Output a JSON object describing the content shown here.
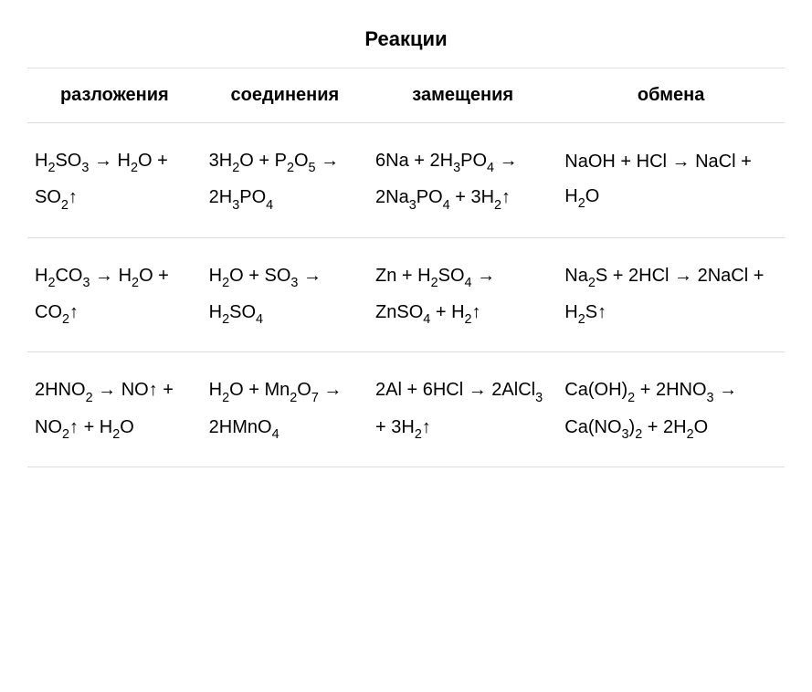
{
  "title": "Реакции",
  "columns": [
    "разложения",
    "соединения",
    "замещения",
    "обмена"
  ],
  "rows": [
    [
      "H{2}SO{3} → H{2}O + SO{2}↑",
      "3H{2}O + P{2}O{5} → 2H{3}PO{4}",
      "6Na + 2H{3}PO{4} → 2Na{3}PO{4} + 3H{2}↑",
      "NaOH + HCl → NaCl + H{2}O"
    ],
    [
      "H{2}CO{3} → H{2}O + CO{2}↑",
      "H{2}O + SO{3} → H{2}SO{4}",
      "Zn + H{2}SO{4} → ZnSO{4} + H{2}↑",
      "Na{2}S + 2HCl → 2NaCl + H{2}S↑"
    ],
    [
      "2HNO{2} → NO↑ + NO{2}↑ + H{2}O",
      "H{2}O + Mn{2}O{7} → 2HMnO{4}",
      "2Al + 6HCl → 2AlCl{3} + 3H{2}↑",
      "Ca(OH){2} + 2HNO{3} → Ca(NO{3}){2} + 2H{2}O"
    ]
  ],
  "style": {
    "background_color": "#ffffff",
    "text_color": "#000000",
    "border_color": "#dddddd",
    "title_fontsize": 22,
    "header_fontsize": 20,
    "cell_fontsize": 20,
    "font_family": "Arial",
    "column_widths_pct": [
      23,
      22,
      25,
      30
    ]
  }
}
